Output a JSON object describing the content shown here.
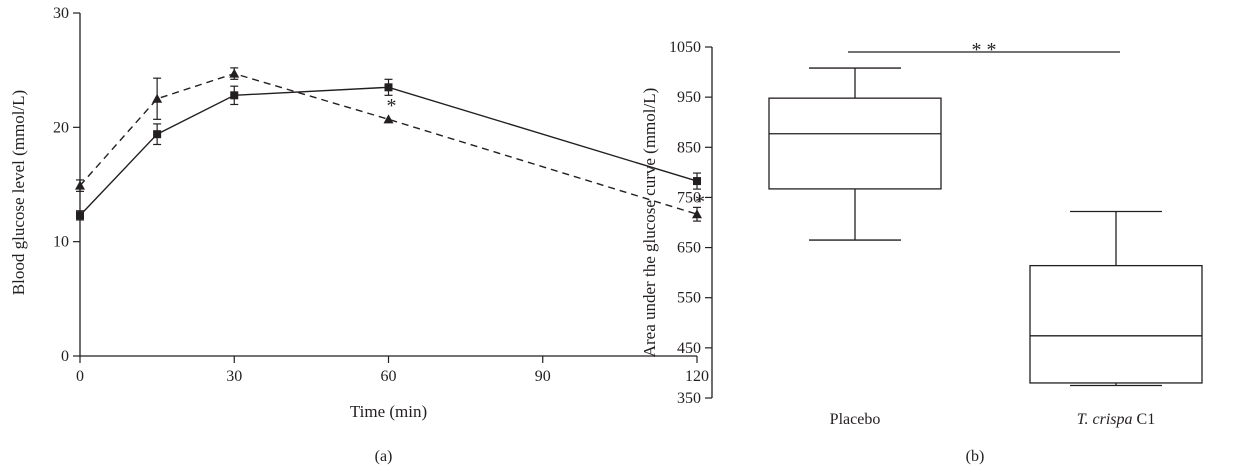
{
  "chart_data": [
    {
      "type": "line",
      "panel_label": "(a)",
      "xlabel": "Time (min)",
      "ylabel": "Blood glucose level (mmol/L)",
      "xlim": [
        0,
        120
      ],
      "ylim": [
        0,
        30
      ],
      "xticks": [
        0,
        30,
        60,
        90,
        120
      ],
      "yticks": [
        0,
        10,
        20,
        30
      ],
      "grid": false,
      "series": [
        {
          "marker": "square",
          "line_style": "solid",
          "x": [
            0,
            15,
            30,
            60,
            120
          ],
          "y": [
            12.3,
            19.4,
            22.8,
            23.5,
            15.3
          ],
          "err": [
            0.4,
            0.9,
            0.8,
            0.7,
            0.7
          ]
        },
        {
          "marker": "triangle",
          "line_style": "dashed",
          "x": [
            0,
            15,
            30,
            60,
            120
          ],
          "y": [
            14.9,
            22.5,
            24.7,
            20.7,
            12.4
          ],
          "err": [
            0.5,
            1.8,
            0.5,
            0.0,
            0.6
          ]
        }
      ],
      "annotations": [
        {
          "text": "*",
          "x": 60,
          "y": 22.3
        },
        {
          "text": "*",
          "x": 120,
          "y": 13.9
        }
      ]
    },
    {
      "type": "box",
      "panel_label": "(b)",
      "xlabel": "",
      "ylabel": "Area under the glucose curve (mmol/L)",
      "ylim": [
        350,
        1050
      ],
      "yticks": [
        350,
        450,
        550,
        650,
        750,
        850,
        950,
        1050
      ],
      "categories": [
        {
          "plain": "Placebo",
          "italic": "",
          "suffix": ""
        },
        {
          "plain": "",
          "italic": "T. crispa",
          "suffix": " C1"
        }
      ],
      "boxes": [
        {
          "whisker_low": 665,
          "q1": 767,
          "median": 877,
          "q3": 948,
          "whisker_high": 1008
        },
        {
          "whisker_low": 375,
          "q1": 380,
          "median": 474,
          "q3": 614,
          "whisker_high": 722
        }
      ],
      "significance": {
        "text": "* *",
        "y": 1040
      },
      "grid": false
    }
  ]
}
